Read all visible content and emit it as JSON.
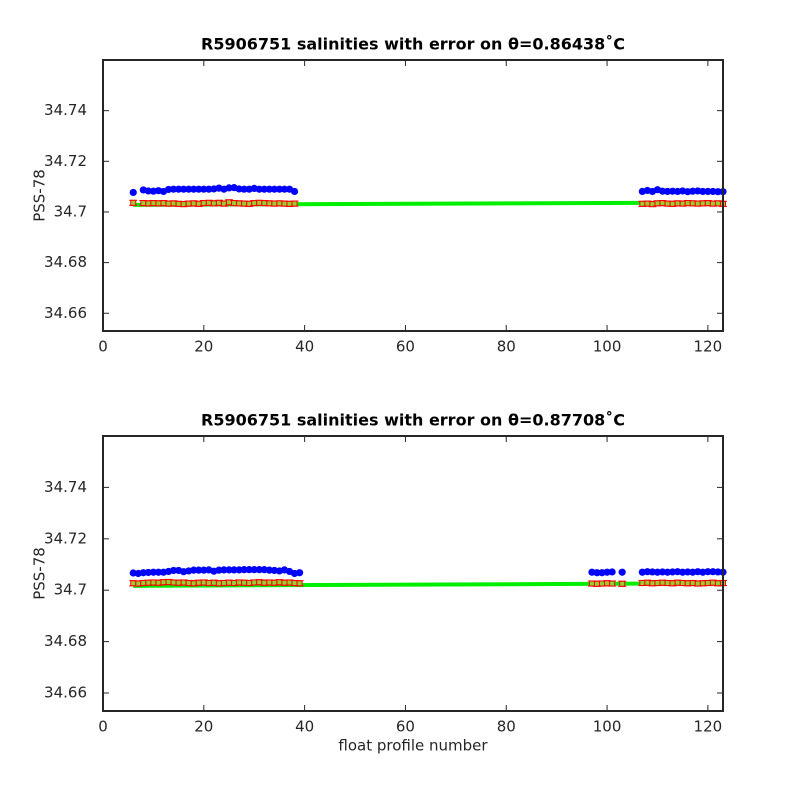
{
  "chart_data": [
    {
      "type": "scatter",
      "title": "R5906751 salinities with error on θ=0.86438˚C",
      "ylabel": "PSS-78",
      "xlim": [
        0,
        123
      ],
      "ylim": [
        34.653,
        34.76
      ],
      "xticks": [
        0,
        20,
        40,
        60,
        80,
        100,
        120
      ],
      "yticks": [
        34.66,
        34.68,
        34.7,
        34.72,
        34.74
      ],
      "x": [
        6,
        8,
        9,
        10,
        11,
        12,
        13,
        14,
        15,
        16,
        17,
        18,
        19,
        20,
        21,
        22,
        23,
        24,
        25,
        26,
        27,
        28,
        29,
        30,
        31,
        32,
        33,
        34,
        35,
        36,
        37,
        38,
        107,
        108,
        109,
        110,
        111,
        112,
        113,
        114,
        115,
        116,
        117,
        118,
        119,
        120,
        121,
        122,
        123
      ],
      "series": [
        {
          "style": "circle",
          "color": "#0000ff",
          "values": [
            34.7077,
            34.7087,
            34.7083,
            34.7082,
            34.7084,
            34.7081,
            34.7089,
            34.709,
            34.709,
            34.709,
            34.709,
            34.709,
            34.709,
            34.709,
            34.709,
            34.7091,
            34.7094,
            34.709,
            34.7095,
            34.7096,
            34.7091,
            34.709,
            34.709,
            34.7093,
            34.709,
            34.709,
            34.709,
            34.709,
            34.709,
            34.709,
            34.709,
            34.7081,
            34.7081,
            34.7085,
            34.7081,
            34.7088,
            34.7082,
            34.7081,
            34.7082,
            34.7081,
            34.7083,
            34.708,
            34.7082,
            34.7083,
            34.7081,
            34.7081,
            34.7081,
            34.708,
            34.708
          ]
        },
        {
          "style": "errorbar",
          "color": "#ff0000",
          "error": 0.001,
          "values": [
            34.7036,
            34.7035,
            34.7034,
            34.7035,
            34.7034,
            34.7035,
            34.7033,
            34.7034,
            34.7032,
            34.7031,
            34.7033,
            34.7034,
            34.7032,
            34.7035,
            34.7036,
            34.7034,
            34.7036,
            34.7033,
            34.7038,
            34.7035,
            34.7034,
            34.7033,
            34.7032,
            34.7035,
            34.7036,
            34.7035,
            34.7034,
            34.7033,
            34.7034,
            34.7033,
            34.7032,
            34.7033,
            34.7032,
            34.7033,
            34.7031,
            34.7034,
            34.7035,
            34.7033,
            34.7032,
            34.7034,
            34.7033,
            34.7035,
            34.7034,
            34.7033,
            34.7034,
            34.7035,
            34.7033,
            34.7034,
            34.7032
          ]
        },
        {
          "style": "line",
          "color": "#00ee00",
          "x": [
            6,
            123
          ],
          "values": [
            34.7028,
            34.7037
          ]
        }
      ]
    },
    {
      "type": "scatter",
      "title": "R5906751 salinities with error on θ=0.87708˚C",
      "ylabel": "PSS-78",
      "xlabel": "float profile number",
      "xlim": [
        0,
        123
      ],
      "ylim": [
        34.653,
        34.76
      ],
      "xticks": [
        0,
        20,
        40,
        60,
        80,
        100,
        120
      ],
      "yticks": [
        34.66,
        34.68,
        34.7,
        34.72,
        34.74
      ],
      "x": [
        6,
        7,
        8,
        9,
        10,
        11,
        12,
        13,
        14,
        15,
        16,
        17,
        18,
        19,
        20,
        21,
        22,
        23,
        24,
        25,
        26,
        27,
        28,
        29,
        30,
        31,
        32,
        33,
        34,
        35,
        36,
        37,
        38,
        39,
        97,
        98,
        99,
        100,
        101,
        103,
        107,
        108,
        109,
        110,
        111,
        112,
        113,
        114,
        115,
        116,
        117,
        118,
        119,
        120,
        121,
        122,
        123
      ],
      "series": [
        {
          "style": "circle",
          "color": "#0000ff",
          "values": [
            34.7067,
            34.7065,
            34.7068,
            34.7069,
            34.707,
            34.707,
            34.707,
            34.7073,
            34.7077,
            34.7077,
            34.7072,
            34.7075,
            34.7078,
            34.7078,
            34.7078,
            34.7079,
            34.7074,
            34.7078,
            34.7079,
            34.7079,
            34.7079,
            34.7079,
            34.708,
            34.708,
            34.708,
            34.708,
            34.708,
            34.7078,
            34.7077,
            34.7075,
            34.7079,
            34.7073,
            34.7065,
            34.7068,
            34.707,
            34.7068,
            34.7068,
            34.707,
            34.7071,
            34.707,
            34.707,
            34.7072,
            34.7071,
            34.707,
            34.7071,
            34.707,
            34.7071,
            34.7072,
            34.707,
            34.7071,
            34.707,
            34.7072,
            34.707,
            34.7072,
            34.7072,
            34.7071,
            34.707
          ]
        },
        {
          "style": "errorbar",
          "color": "#ff0000",
          "error": 0.001,
          "values": [
            34.7027,
            34.7026,
            34.7028,
            34.7029,
            34.703,
            34.7029,
            34.7031,
            34.7032,
            34.703,
            34.7029,
            34.703,
            34.7028,
            34.7027,
            34.7029,
            34.703,
            34.7028,
            34.7029,
            34.7027,
            34.7028,
            34.7029,
            34.7028,
            34.703,
            34.7029,
            34.7028,
            34.703,
            34.7031,
            34.7029,
            34.703,
            34.7029,
            34.7031,
            34.7029,
            34.703,
            34.7028,
            34.7027,
            34.7026,
            34.7025,
            34.7026,
            34.7027,
            34.7026,
            34.7025,
            34.7028,
            34.7029,
            34.7027,
            34.7028,
            34.7029,
            34.7028,
            34.7027,
            34.7029,
            34.7028,
            34.7027,
            34.7028,
            34.7026,
            34.7027,
            34.7028,
            34.7029,
            34.7027,
            34.7028
          ]
        },
        {
          "style": "line",
          "color": "#00ee00",
          "x": [
            6,
            123
          ],
          "values": [
            34.7017,
            34.7027
          ]
        }
      ]
    }
  ]
}
